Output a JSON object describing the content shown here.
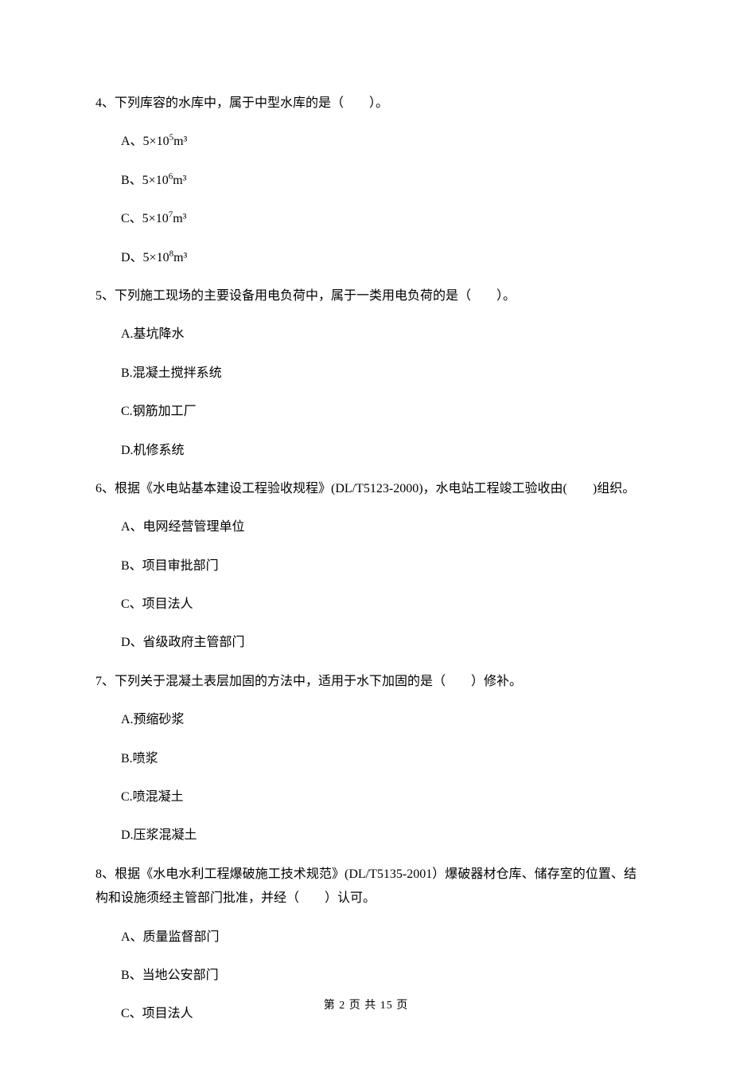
{
  "page": {
    "footer": "第 2 页 共 15 页"
  },
  "q4": {
    "stem": "4、下列库容的水库中，属于中型水库的是（　　）。",
    "A_pre": "A、5×10",
    "A_sup": "5",
    "A_post": "m³",
    "B_pre": "B、5×10",
    "B_sup": "6",
    "B_post": "m³",
    "C_pre": "C、5×10",
    "C_sup": "7",
    "C_post": "m³",
    "D_pre": "D、5×10",
    "D_sup": "8",
    "D_post": "m³"
  },
  "q5": {
    "stem": "5、下列施工现场的主要设备用电负荷中，属于一类用电负荷的是（　　）。",
    "A": "A.基坑降水",
    "B": "B.混凝土搅拌系统",
    "C": "C.钢筋加工厂",
    "D": "D.机修系统"
  },
  "q6": {
    "stem": "6、根据《水电站基本建设工程验收规程》(DL/T5123-2000)，水电站工程竣工验收由(　　)组织。",
    "A": "A、电网经营管理单位",
    "B": "B、项目审批部门",
    "C": "C、项目法人",
    "D": "D、省级政府主管部门"
  },
  "q7": {
    "stem": "7、下列关于混凝土表层加固的方法中，适用于水下加固的是（　　）修补。",
    "A": "A.预缩砂浆",
    "B": "B.喷浆",
    "C": "C.喷混凝土",
    "D": "D.压浆混凝土"
  },
  "q8": {
    "stem": "8、根据《水电水利工程爆破施工技术规范》(DL/T5135-2001）爆破器材仓库、储存室的位置、结构和设施须经主管部门批准，并经（　　）认可。",
    "A": "A、质量监督部门",
    "B": "B、当地公安部门",
    "C": "C、项目法人"
  }
}
